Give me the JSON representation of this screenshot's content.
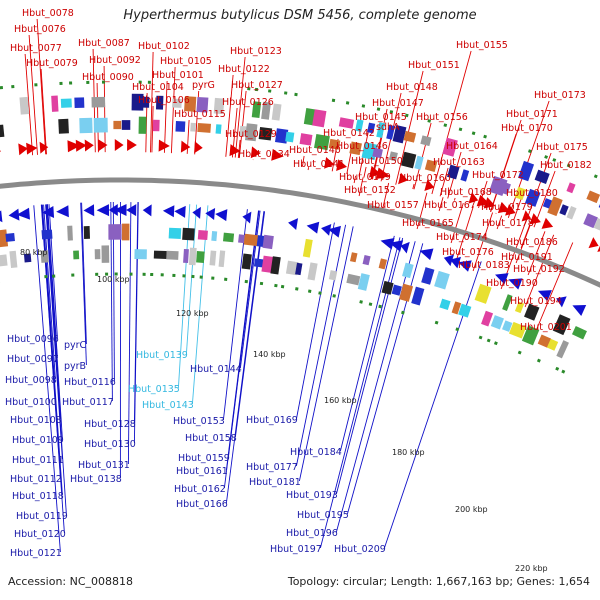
{
  "title": "Hyperthermus butylicus DSM 5456, complete genome",
  "accession": "Accession: NC_008818",
  "topology": "Topology: circular; Length: 1,667,163 bp; Genes: 1,654",
  "colors": {
    "forward": "#e00000",
    "reverse": "#1010d0",
    "rna": "#33c8e8",
    "backbone": "#8a8a8a",
    "tick": "#2a8a2a"
  },
  "kbp_labels": [
    "80 kbp",
    "100 kbp",
    "120 kbp",
    "140 kbp",
    "160 kbp",
    "180 kbp",
    "200 kbp",
    "220 kbp"
  ],
  "top_labels": [
    "Hbut_0078",
    "Hbut_0076",
    "Hbut_0077",
    "Hbut_0079",
    "Hbut_0087",
    "Hbut_0092",
    "Hbut_0090",
    "Hbut_0102",
    "Hbut_0105",
    "Hbut_0101",
    "Hbut_0104",
    "Hbut_0106",
    "pyrG",
    "Hbut_0115",
    "Hbut_0123",
    "Hbut_0122",
    "Hbut_0127",
    "Hbut_0126",
    "Hbut_0129",
    "Hbut_0134",
    "Hbut_0140",
    "Hbut_0141",
    "Hbut_0142",
    "Hbut_0146",
    "Hbut_0145",
    "Hbut_0147",
    "Hbut_0148",
    "Hbut_0151",
    "Hbut_0155",
    "Hbut_0156",
    "sdhA",
    "Hbut_0150",
    "Hbut_0149",
    "Hbut_0152",
    "Hbut_0157",
    "Hbut_0160",
    "Hbut_0164",
    "Hbut_0163",
    "Hbut_0168",
    "Hbut_0167",
    "Hbut_0165",
    "Hbut_0174",
    "Hbut_0176",
    "Hbut_0183",
    "Hbut_0173",
    "Hbut_0171",
    "Hbut_0170",
    "Hbut_0175",
    "Hbut_0182",
    "Hbut_0172",
    "Hbut_0180",
    "Hbut_0179",
    "Hbut_0178",
    "Hbut_0186",
    "Hbut_0191",
    "Hbut_0192",
    "Hbut_0190",
    "Hbut_0194",
    "Hbut_0201"
  ],
  "bottom_labels": [
    "Hbut_0096",
    "pyrC",
    "Hbut_0097",
    "pyrB",
    "Hbut_0098",
    "Hbut_0116",
    "Hbut_0100",
    "Hbut_0117",
    "Hbut_0108",
    "Hbut_0128",
    "Hbut_0109",
    "Hbut_0130",
    "Hbut_0111",
    "Hbut_0131",
    "Hbut_0112",
    "Hbut_0138",
    "Hbut_0118",
    "Hbut_0119",
    "Hbut_0120",
    "Hbut_0121",
    "Hbut_0139",
    "Hbut_0135",
    "Hbut_0143",
    "Hbut_0144",
    "Hbut_0153",
    "Hbut_0158",
    "Hbut_0159",
    "Hbut_0161",
    "Hbut_0162",
    "Hbut_0166",
    "Hbut_0169",
    "Hbut_0177",
    "Hbut_0181",
    "Hbut_0184",
    "Hbut_0193",
    "Hbut_0195",
    "Hbut_0196",
    "Hbut_0197",
    "Hbut_0209"
  ],
  "cyan_labels": [
    "Hbut_0139",
    "Hbut_0135",
    "Hbut_0143"
  ]
}
